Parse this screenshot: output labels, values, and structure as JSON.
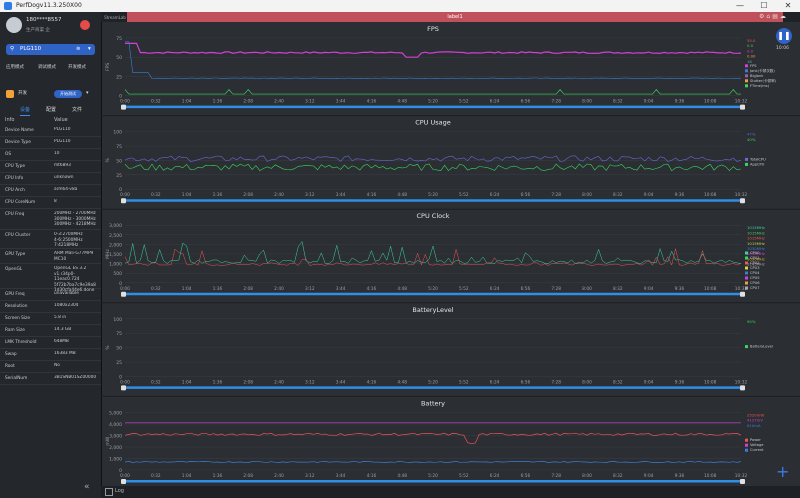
{
  "window": {
    "title": "PerfDogv11.3.250X00",
    "min": "—",
    "max": "☐",
    "close": "✕"
  },
  "sidebar": {
    "user": {
      "name": "180****8557",
      "sub": "生产商渠 企"
    },
    "device": "PLG110",
    "app_tabs": [
      "应用模式",
      "调试模式",
      "开发模式"
    ],
    "app": {
      "name": "开发",
      "badge": "开始测试"
    },
    "sub_tabs": [
      "设备",
      "配置",
      "文件"
    ],
    "info_headers": {
      "key": "Info",
      "value": "Value"
    },
    "info": [
      {
        "k": "Device Name",
        "v": "PLG110",
        "h": 11
      },
      {
        "k": "Device Type",
        "v": "PLG110",
        "h": 11
      },
      {
        "k": "OS",
        "v": "10",
        "h": 11
      },
      {
        "k": "CPU Type",
        "v": "mt6893",
        "h": 11
      },
      {
        "k": "CPU Info",
        "v": "unknown",
        "h": 11
      },
      {
        "k": "CPU Arch",
        "v": "arm64-v8a",
        "h": 11
      },
      {
        "k": "CPU CoreNum",
        "v": "8",
        "h": 11
      },
      {
        "k": "CPU Freq",
        "v": "200MHz - 2700MHz\n300MHz - 3000MHz\n300MHz - 4218MHz",
        "h": 20
      },
      {
        "k": "CPU Cluster",
        "v": "0-3:2700MHz\n4-6:2500MHz\n7:4218MHz",
        "h": 18
      },
      {
        "k": "GPU Type",
        "v": "ARM Mali-G77MP9\nMC10",
        "h": 14
      },
      {
        "k": "OpenGL",
        "v": "OpenGL ES 3.2\nv1.r34p0-11eac0.724\n5f72b7ba7c9e39a8\n1d30cfa44e6.done",
        "h": 24
      },
      {
        "k": "GPU Freq",
        "v": "unavailable",
        "h": 11
      },
      {
        "k": "Resolution",
        "v": "1080x2304",
        "h": 11
      },
      {
        "k": "Screen Size",
        "v": "5.8 in",
        "h": 11
      },
      {
        "k": "Ram Size",
        "v": "14.3 GB",
        "h": 11
      },
      {
        "k": "LMK Threshold",
        "v": "648MB",
        "h": 11
      },
      {
        "k": "Swap",
        "v": "16383 MB",
        "h": 11
      },
      {
        "k": "Root",
        "v": "No",
        "h": 11
      },
      {
        "k": "SerialNum",
        "v": "3B1SNB01SZ00000",
        "h": 11
      }
    ]
  },
  "tabs": {
    "first": "StreamLab",
    "active": "label1"
  },
  "timer": "10:06",
  "bottom": {
    "log": "Log"
  },
  "time_ticks": [
    "0:00",
    "0:32",
    "1:04",
    "1:36",
    "2:08",
    "2:40",
    "3:12",
    "3:44",
    "4:16",
    "4:48",
    "5:20",
    "5:52",
    "6:24",
    "6:56",
    "7:28",
    "8:00",
    "8:32",
    "9:04",
    "9:36",
    "10:08",
    "10:32"
  ],
  "charts": [
    {
      "title": "FPS",
      "ylabel": "FPS",
      "yticks": [
        "0",
        "25",
        "50",
        "75"
      ],
      "ymax": 75,
      "legend": [
        "FPS",
        "Jank(卡顿次数)",
        "BigJank",
        "Stutter(卡顿率)",
        "FTime(ms)"
      ],
      "legend_colors": [
        "#d63fd6",
        "#3a7fd6",
        "#9b59b6",
        "#e5a33a",
        "#3bd65d"
      ],
      "right_values": [
        "55.0",
        "0.0",
        "0.0",
        "0.00",
        "18"
      ],
      "right_colors": [
        "#e55",
        "#3bd65d",
        "#d63fd6",
        "#e5a33a",
        "#5aa"
      ]
    },
    {
      "title": "CPU Usage",
      "ylabel": "%",
      "yticks": [
        "0",
        "25",
        "50",
        "75",
        "100"
      ],
      "ymax": 100,
      "legend": [
        "TotalCPU",
        "AppCPU"
      ],
      "legend_colors": [
        "#6a6ad8",
        "#3bd65d"
      ],
      "right_values": [
        "47%",
        "40%"
      ],
      "right_colors": [
        "#6a6ad8",
        "#3bd65d"
      ]
    },
    {
      "title": "CPU Clock",
      "ylabel": "MHz",
      "yticks": [
        "0",
        "500",
        "1,000",
        "1,500",
        "2,000",
        "2,500",
        "3,000"
      ],
      "ymax": 3000,
      "legend": [
        "CPU0",
        "CPU1",
        "CPU2",
        "CPU3",
        "CPU4",
        "CPU5",
        "CPU6",
        "CPU7"
      ],
      "legend_colors": [
        "#3bd6a0",
        "#3bd65d",
        "#e55",
        "#d6d63b",
        "#3a7fd6",
        "#d63fd6",
        "#e5a33a",
        "#aaa"
      ],
      "right_values": [
        "1015MHz",
        "1015MHz",
        "1015MHz",
        "1015MHz",
        "1030MHz",
        "1030MHz",
        "1030MHz",
        "1145MHz"
      ],
      "right_colors": [
        "#3bd6a0",
        "#3bd65d",
        "#e55",
        "#d6d63b",
        "#3a7fd6",
        "#d63fd6",
        "#e5a33a",
        "#aaa"
      ]
    },
    {
      "title": "BatteryLevel",
      "ylabel": "%",
      "yticks": [
        "0",
        "25",
        "50",
        "75",
        "100"
      ],
      "ymax": 100,
      "legend": [
        "BatteryLevel"
      ],
      "legend_colors": [
        "#3bd65d"
      ],
      "right_values": [
        "90%"
      ],
      "right_colors": [
        "#3bd65d"
      ]
    },
    {
      "title": "Battery",
      "ylabel": "mW",
      "yticks": [
        "0",
        "1,000",
        "2,000",
        "3,000",
        "4,000",
        "5,000"
      ],
      "ymax": 5000,
      "legend": [
        "Power",
        "Voltage",
        "Current"
      ],
      "legend_colors": [
        "#e55",
        "#d63fd6",
        "#3a7fd6"
      ],
      "right_values": [
        "2520mW",
        "4127mV",
        "610mA"
      ],
      "right_colors": [
        "#e55",
        "#d63fd6",
        "#3a7fd6"
      ]
    }
  ]
}
